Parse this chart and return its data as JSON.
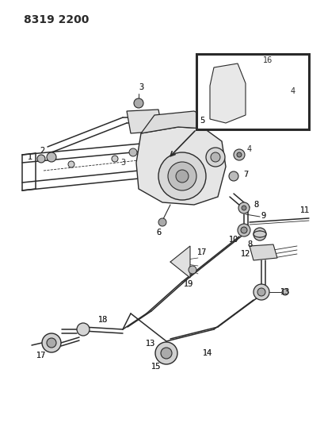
{
  "title": "8319 2200",
  "bg_color": "#ffffff",
  "lc": "#2a2a2a",
  "title_fontsize": 10,
  "label_fontsize": 7,
  "figsize": [
    4.1,
    5.33
  ],
  "dpi": 100
}
